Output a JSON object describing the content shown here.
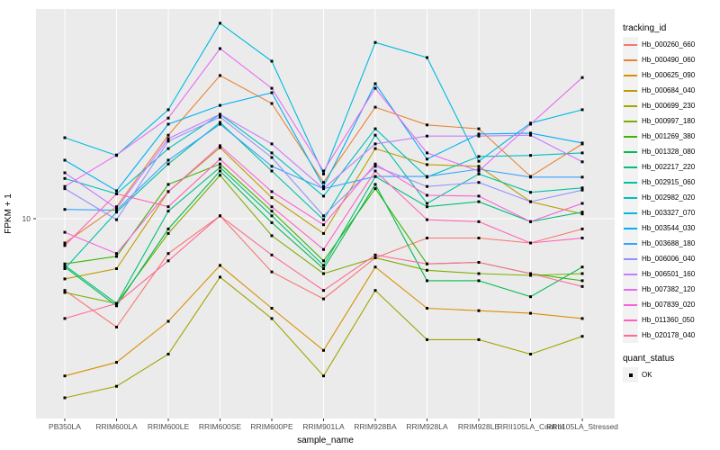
{
  "chart_data": {
    "type": "line",
    "title": "",
    "xlabel": "sample_name",
    "ylabel": "FPKM + 1",
    "y_scale": "log10",
    "ylim": [
      1.3,
      80
    ],
    "grid": "white-on-gray-panel",
    "panel_bg": "#EBEBEB",
    "grid_color": "#FFFFFF",
    "y_ticks": [
      {
        "value": 10,
        "label": "10"
      }
    ],
    "point_marker": {
      "shape": "square",
      "color": "#000000"
    },
    "categories": [
      "PB350LA",
      "RRIM600LA",
      "RRIM600LE",
      "RRIM600SE",
      "RRIM600PE",
      "RRIM901LA",
      "RRIM928BA",
      "RRIM928LA",
      "RRIM928LE",
      "RRII105LA_Control",
      "RRII105LA_Stressed"
    ],
    "legend": {
      "color_title": "tracking_id",
      "shape_title": "quant_status",
      "shape_entries": [
        {
          "label": "OK"
        }
      ],
      "position": "right"
    },
    "series": [
      {
        "name": "Hb_000260_660",
        "color": "#F8766D",
        "values": [
          4.8,
          3.3,
          7.0,
          10.3,
          5.8,
          4.4,
          6.7,
          8.2,
          8.2,
          7.8,
          9.0
        ]
      },
      {
        "name": "Hb_000490_060",
        "color": "#EA8331",
        "values": [
          7.8,
          11.3,
          23.5,
          43.3,
          32.5,
          14.5,
          31.3,
          26.1,
          25.1,
          15.4,
          21.5
        ]
      },
      {
        "name": "Hb_000625_090",
        "color": "#D89000",
        "values": [
          2.0,
          2.3,
          3.5,
          6.2,
          4.0,
          2.6,
          6.1,
          4.0,
          3.9,
          3.8,
          3.6
        ]
      },
      {
        "name": "Hb_000684_040",
        "color": "#C09B00",
        "values": [
          5.4,
          6.0,
          13.2,
          20.7,
          12.4,
          8.6,
          20.5,
          17.4,
          17.1,
          11.9,
          10.5
        ]
      },
      {
        "name": "Hb_000699_230",
        "color": "#A3A500",
        "values": [
          1.6,
          1.8,
          2.5,
          5.5,
          3.6,
          2.0,
          4.8,
          2.9,
          2.9,
          2.5,
          3.0
        ]
      },
      {
        "name": "Hb_000997_180",
        "color": "#7CAE00",
        "values": [
          4.7,
          4.2,
          8.6,
          15.6,
          8.4,
          5.7,
          6.7,
          5.9,
          5.7,
          5.6,
          5.7
        ]
      },
      {
        "name": "Hb_001269_380",
        "color": "#39B600",
        "values": [
          6.3,
          6.8,
          14.2,
          17.5,
          10.8,
          6.5,
          13.6,
          6.3,
          6.4,
          5.7,
          5.3
        ]
      },
      {
        "name": "Hb_001328_080",
        "color": "#00BB4E",
        "values": [
          6.1,
          4.1,
          9.0,
          16.3,
          9.6,
          6.0,
          14.2,
          5.3,
          5.3,
          4.5,
          6.1
        ]
      },
      {
        "name": "Hb_002217_220",
        "color": "#00BF7D",
        "values": [
          6.2,
          4.2,
          10.8,
          16.9,
          10.3,
          6.2,
          15.4,
          11.3,
          11.9,
          9.7,
          10.7
        ]
      },
      {
        "name": "Hb_002915_060",
        "color": "#00C1A3",
        "values": [
          6.0,
          10.7,
          17.5,
          26.8,
          16.3,
          9.9,
          23.5,
          11.7,
          15.8,
          13.1,
          13.7
        ]
      },
      {
        "name": "Hb_002982_020",
        "color": "#00BFC4",
        "values": [
          15.1,
          12.9,
          20.5,
          29.1,
          19.6,
          12.6,
          25.1,
          15.3,
          18.9,
          19.1,
          19.6
        ]
      },
      {
        "name": "Hb_003327_070",
        "color": "#00BAE0",
        "values": [
          22.9,
          19.1,
          30.5,
          73.9,
          50.1,
          15.8,
          60.7,
          52.0,
          18.0,
          26.6,
          30.5
        ]
      },
      {
        "name": "Hb_003544_030",
        "color": "#00B0F6",
        "values": [
          18.2,
          13.3,
          26.3,
          31.9,
          36.3,
          13.9,
          39.8,
          18.4,
          23.8,
          24.0,
          21.7
        ]
      },
      {
        "name": "Hb_003688_180",
        "color": "#35A2FF",
        "values": [
          11.0,
          10.9,
          18.2,
          26.3,
          17.1,
          13.6,
          15.4,
          15.4,
          16.6,
          15.3,
          15.3
        ]
      },
      {
        "name": "Hb_006006_040",
        "color": "#9590FF",
        "values": [
          13.6,
          9.9,
          22.1,
          28.3,
          18.7,
          10.3,
          17.1,
          13.9,
          14.5,
          11.9,
          13.4
        ]
      },
      {
        "name": "Hb_006501_160",
        "color": "#C77CFF",
        "values": [
          16.0,
          11.1,
          22.7,
          29.1,
          21.5,
          13.6,
          21.5,
          23.3,
          23.3,
          23.5,
          17.9
        ]
      },
      {
        "name": "Hb_007382_120",
        "color": "#E76BF3",
        "values": [
          13.9,
          19.2,
          28.0,
          57.0,
          38.0,
          16.3,
          38.0,
          19.6,
          16.3,
          26.3,
          42.4
        ]
      },
      {
        "name": "Hb_007839_020",
        "color": "#FA62DB",
        "values": [
          8.7,
          7.0,
          13.2,
          21.1,
          13.2,
          9.4,
          17.5,
          12.7,
          12.6,
          9.7,
          11.7
        ]
      },
      {
        "name": "Hb_011360_050",
        "color": "#FF62BC",
        "values": [
          7.6,
          12.9,
          11.3,
          18.4,
          11.3,
          7.3,
          16.3,
          9.9,
          9.7,
          7.8,
          8.2
        ]
      },
      {
        "name": "Hb_020178_040",
        "color": "#FF6A98",
        "values": [
          3.6,
          4.2,
          6.5,
          10.3,
          6.9,
          4.8,
          6.9,
          6.3,
          6.4,
          5.7,
          5.0
        ]
      }
    ]
  }
}
